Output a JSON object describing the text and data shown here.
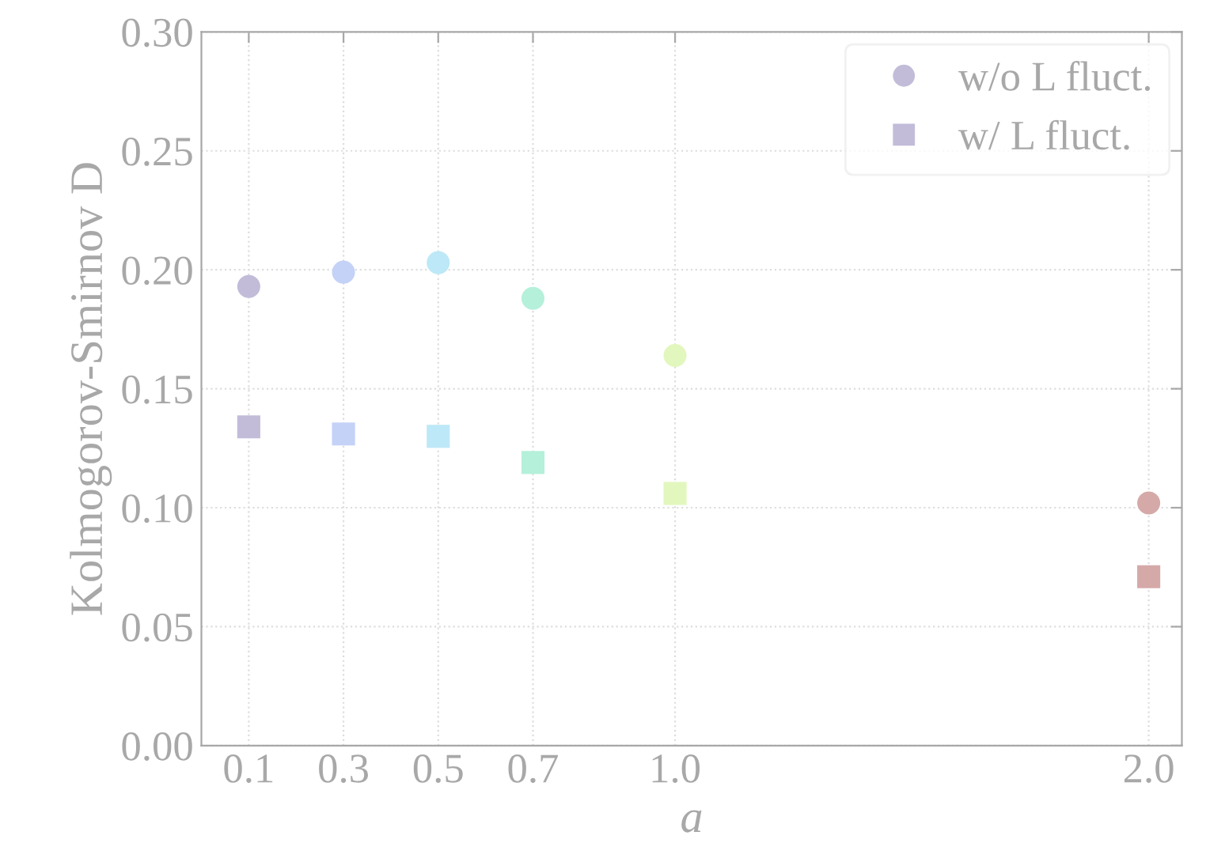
{
  "chart_data": {
    "type": "scatter",
    "xlabel": "a",
    "ylabel": "Kolmogorov-Smirnov D",
    "x": [
      0.1,
      0.3,
      0.5,
      0.7,
      1.0,
      2.0
    ],
    "series": [
      {
        "name": "w/o L fluct.",
        "marker": "circle",
        "color": "#c2bcd9",
        "colors": [
          "#c2bcd9",
          "#c4d2f7",
          "#bde8f7",
          "#b5f0da",
          "#e2f7bd",
          "#d6a9a9"
        ],
        "values": [
          0.193,
          0.199,
          0.203,
          0.188,
          0.164,
          0.102
        ]
      },
      {
        "name": "w/ L fluct.",
        "marker": "square",
        "color": "#c2bcd9",
        "colors": [
          "#c2bcd9",
          "#c4d2f7",
          "#bde8f7",
          "#b5f0da",
          "#e2f7bd",
          "#d6a9a9"
        ],
        "values": [
          0.134,
          0.131,
          0.13,
          0.119,
          0.106,
          0.071
        ]
      }
    ],
    "xlim": [
      0.0,
      2.07
    ],
    "xticks": [
      {
        "value": 0.1,
        "label": "0.1"
      },
      {
        "value": 0.3,
        "label": "0.3"
      },
      {
        "value": 0.5,
        "label": "0.5"
      },
      {
        "value": 0.7,
        "label": "0.7"
      },
      {
        "value": 1.0,
        "label": "1.0"
      },
      {
        "value": 2.0,
        "label": "2.0"
      }
    ],
    "ylim": [
      0.0,
      0.3
    ],
    "yticks": [
      {
        "value": 0.0,
        "label": "0.00"
      },
      {
        "value": 0.05,
        "label": "0.05"
      },
      {
        "value": 0.1,
        "label": "0.10"
      },
      {
        "value": 0.15,
        "label": "0.15"
      },
      {
        "value": 0.2,
        "label": "0.20"
      },
      {
        "value": 0.25,
        "label": "0.25"
      },
      {
        "value": 0.3,
        "label": "0.30"
      }
    ],
    "grid": true,
    "legend": "top right"
  }
}
